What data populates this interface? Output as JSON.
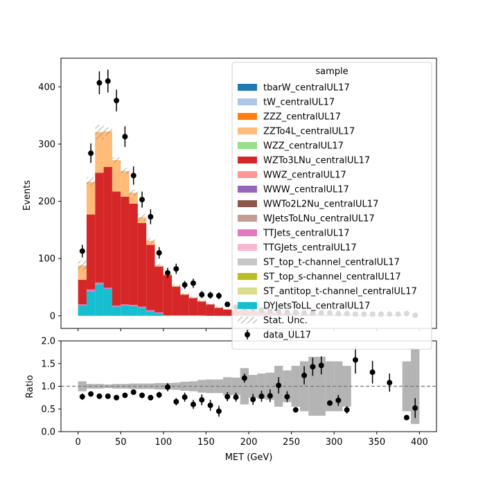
{
  "chart_data": [
    {
      "type": "histogram-stacked",
      "panel": "main",
      "ylabel": "Events",
      "xlim": [
        -20,
        420
      ],
      "ylim": [
        -22,
        450
      ],
      "yticks": [
        0,
        100,
        200,
        300,
        400
      ],
      "bins_low_edges": [
        0,
        10,
        20,
        30,
        40,
        50,
        60,
        70,
        80,
        90,
        100,
        110,
        120,
        130,
        140,
        150,
        160,
        170,
        180,
        190,
        200,
        210,
        220,
        230,
        240,
        250,
        260,
        270,
        280,
        290,
        300,
        310,
        320,
        330,
        340,
        350,
        360,
        370,
        380,
        390
      ],
      "bin_width": 10,
      "legend": {
        "title": "sample",
        "placement": "upper right",
        "entries": [
          {
            "label": "tbarW_centralUL17",
            "color": "#1f77b4"
          },
          {
            "label": "tW_centralUL17",
            "color": "#aec7e8"
          },
          {
            "label": "ZZZ_centralUL17",
            "color": "#ff7f0e"
          },
          {
            "label": "ZZTo4L_centralUL17",
            "color": "#ffbb78"
          },
          {
            "label": "WZZ_centralUL17",
            "color": "#98df8a"
          },
          {
            "label": "WZTo3LNu_centralUL17",
            "color": "#d62728"
          },
          {
            "label": "WWZ_centralUL17",
            "color": "#ff9896"
          },
          {
            "label": "WWW_centralUL17",
            "color": "#9467bd"
          },
          {
            "label": "WWTo2L2Nu_centralUL17",
            "color": "#8c564b"
          },
          {
            "label": "WJetsToLNu_centralUL17",
            "color": "#c49c94"
          },
          {
            "label": "TTJets_centralUL17",
            "color": "#e377c2"
          },
          {
            "label": "TTGJets_centralUL17",
            "color": "#f7b6d2"
          },
          {
            "label": "ST_top_t-channel_centralUL17",
            "color": "#c7c7c7"
          },
          {
            "label": "ST_top_s-channel_centralUL17",
            "color": "#bcbd22"
          },
          {
            "label": "ST_antitop_t-channel_centralUL17",
            "color": "#dbdb8d"
          },
          {
            "label": "DYJetsToLL_centralUL17",
            "color": "#17becf"
          },
          {
            "label": "Stat. Unc.",
            "kind": "hatch"
          },
          {
            "label": "data_UL17",
            "kind": "errorbar"
          }
        ]
      },
      "stack_series": [
        {
          "name": "DYJetsToLL_centralUL17",
          "color": "#17becf",
          "values": [
            18,
            43,
            55,
            47,
            16,
            18,
            17,
            14,
            8,
            4,
            0,
            0,
            0,
            0,
            0,
            0,
            0,
            0,
            0,
            0,
            0,
            0,
            0,
            0,
            0,
            0,
            0,
            0,
            0,
            0,
            0,
            0,
            0,
            0,
            0,
            0,
            0,
            0,
            0,
            0
          ]
        },
        {
          "name": "TTJets_centralUL17",
          "color": "#e377c2",
          "values": [
            2,
            3,
            3,
            2,
            2,
            2,
            2,
            2,
            2,
            2,
            1,
            1,
            1,
            1,
            1,
            0,
            0,
            0,
            0,
            0,
            0,
            0,
            0,
            0,
            0,
            0,
            0,
            0,
            0,
            0,
            0,
            0,
            0,
            0,
            0,
            0,
            0,
            0,
            0,
            0
          ]
        },
        {
          "name": "WZTo3LNu_centralUL17",
          "color": "#d62728",
          "values": [
            43,
            131,
            192,
            211,
            199,
            188,
            177,
            146,
            114,
            80,
            70,
            50,
            36,
            30,
            24,
            20,
            14,
            11,
            10,
            10,
            8,
            8,
            6,
            5,
            4,
            4,
            3,
            3,
            2,
            2,
            2,
            2,
            1,
            1,
            1,
            1,
            1,
            1,
            0,
            0
          ]
        },
        {
          "name": "ZZTo4L_centralUL17",
          "color": "#ffbb78",
          "values": [
            25,
            57,
            71,
            62,
            55,
            45,
            19,
            10,
            7,
            2,
            2,
            1,
            1,
            1,
            1,
            0,
            0,
            0,
            0,
            0,
            0,
            0,
            0,
            0,
            0,
            0,
            0,
            0,
            0,
            0,
            0,
            0,
            0,
            0,
            0,
            0,
            0,
            0,
            0,
            0
          ]
        }
      ],
      "stat_unc": [
        8,
        8,
        13,
        7,
        5,
        5,
        6,
        6,
        5,
        3,
        3,
        3,
        2,
        2,
        2,
        2,
        2,
        1,
        1,
        1,
        1,
        1,
        1,
        1,
        1,
        1,
        1,
        1,
        1,
        1,
        1,
        1,
        0,
        0,
        0,
        0,
        0,
        0,
        0,
        0
      ],
      "data": {
        "name": "data_UL17",
        "x": [
          5,
          15,
          25,
          35,
          45,
          55,
          65,
          75,
          85,
          95,
          105,
          115,
          125,
          135,
          145,
          155,
          165,
          175,
          185,
          195,
          205,
          215,
          225,
          235,
          245,
          255,
          265,
          275,
          285,
          295,
          305,
          315,
          325,
          335,
          345,
          355,
          365,
          375,
          385,
          395
        ],
        "y": [
          113,
          284,
          407,
          410,
          376,
          313,
          245,
          203,
          173,
          110,
          75,
          82,
          54,
          57,
          37,
          36,
          35,
          20,
          15,
          14,
          12,
          10,
          8,
          7,
          6,
          6,
          5,
          5,
          5,
          5,
          4,
          4,
          3,
          3,
          3,
          3,
          3,
          3,
          4,
          1
        ],
        "yerr": [
          11,
          17,
          20,
          20,
          19,
          18,
          16,
          14,
          13,
          10,
          9,
          9,
          7,
          8,
          6,
          6,
          6,
          4,
          4,
          4,
          3,
          3,
          3,
          3,
          2,
          2,
          2,
          2,
          2,
          2,
          2,
          2,
          2,
          2,
          2,
          2,
          2,
          2,
          2,
          1
        ]
      }
    },
    {
      "type": "ratio",
      "panel": "ratio",
      "ylabel": "Ratio",
      "xlabel": "MET (GeV)",
      "xlim": [
        -20,
        420
      ],
      "ylim": [
        0.0,
        2.0
      ],
      "xticks": [
        0,
        50,
        100,
        150,
        200,
        250,
        300,
        350,
        400
      ],
      "yticks": [
        0.0,
        0.5,
        1.0,
        1.5,
        2.0
      ],
      "reference_line": 1.0,
      "unc_band": {
        "lo": [
          0.89,
          0.95,
          0.95,
          0.96,
          0.95,
          0.95,
          0.94,
          0.94,
          0.94,
          0.93,
          0.93,
          0.92,
          0.9,
          0.89,
          0.86,
          0.85,
          0.85,
          0.8,
          0.81,
          0.6,
          0.75,
          0.72,
          0.7,
          0.55,
          0.65,
          0.55,
          0.45,
          0.35,
          0.35,
          0.45,
          0.45,
          0.55,
          null,
          null,
          null,
          null,
          null,
          null,
          0.45,
          0.17
        ],
        "hi": [
          1.11,
          1.05,
          1.05,
          1.04,
          1.05,
          1.05,
          1.06,
          1.06,
          1.06,
          1.07,
          1.07,
          1.08,
          1.1,
          1.11,
          1.14,
          1.15,
          1.15,
          1.2,
          1.19,
          1.4,
          1.25,
          1.28,
          1.3,
          1.45,
          1.35,
          1.45,
          1.55,
          1.65,
          1.65,
          1.55,
          1.55,
          1.45,
          null,
          null,
          null,
          null,
          null,
          null,
          1.55,
          1.83
        ]
      },
      "points": {
        "x": [
          5,
          15,
          25,
          35,
          45,
          55,
          65,
          75,
          85,
          95,
          105,
          115,
          125,
          135,
          145,
          155,
          165,
          175,
          185,
          195,
          205,
          215,
          225,
          235,
          245,
          255,
          265,
          275,
          285,
          295,
          305,
          315,
          325,
          345,
          365,
          385,
          395
        ],
        "y": [
          0.77,
          0.83,
          0.78,
          0.78,
          0.75,
          0.8,
          0.87,
          0.8,
          0.75,
          0.81,
          0.98,
          0.66,
          0.76,
          0.6,
          0.7,
          0.58,
          0.45,
          0.77,
          0.76,
          1.18,
          0.71,
          0.78,
          0.79,
          1.02,
          0.77,
          0.48,
          1.24,
          1.43,
          1.46,
          0.63,
          0.69,
          0.48,
          1.58,
          1.31,
          1.08,
          0.31,
          0.52
        ],
        "yerr": [
          0.07,
          0.05,
          0.04,
          0.04,
          0.04,
          0.05,
          0.05,
          0.06,
          0.06,
          0.07,
          0.09,
          0.08,
          0.1,
          0.1,
          0.12,
          0.12,
          0.12,
          0.1,
          0.1,
          0.1,
          0.12,
          0.12,
          0.14,
          0.18,
          0.12,
          0.0,
          0.2,
          0.2,
          0.2,
          0.0,
          0.12,
          0.08,
          0.3,
          0.25,
          0.2,
          0.0,
          0.22
        ]
      }
    }
  ]
}
